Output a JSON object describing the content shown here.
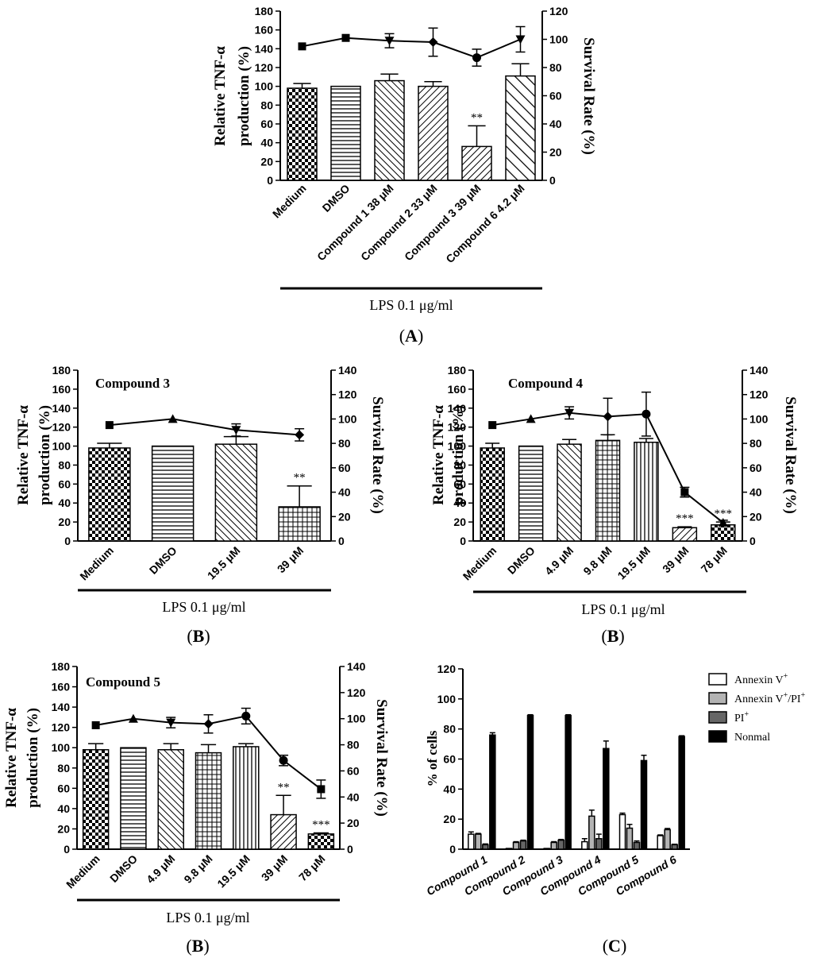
{
  "chart_data": [
    {
      "id": "A",
      "type": "bar",
      "panel_label": "(A)",
      "title": "",
      "ylabel": "Relative TNF-α\nproduction (%)",
      "y2label": "Survival Rate (%)",
      "ylim": [
        0,
        180
      ],
      "yticks": [
        0,
        20,
        40,
        60,
        80,
        100,
        120,
        140,
        160,
        180
      ],
      "y2lim": [
        0,
        120
      ],
      "y2ticks": [
        0,
        20,
        40,
        60,
        80,
        100,
        120
      ],
      "xgroup_label": "LPS 0.1 μg/ml",
      "categories": [
        "Medium",
        "DMSO",
        "Compound 1 38 μM",
        "Compound 2 33 μM",
        "Compound 3 39 μM",
        "Compound 6 4.2 μM"
      ],
      "values": [
        98,
        100,
        106,
        100,
        36,
        111
      ],
      "errors": [
        5,
        0,
        7,
        5,
        22,
        13
      ],
      "patterns": [
        "checker",
        "hlines",
        "diagrev",
        "diag",
        "diag",
        "diagrevwide"
      ],
      "annotations": [
        "",
        "",
        "",
        "",
        "**",
        ""
      ],
      "survival": [
        95,
        101,
        99,
        98,
        87,
        100
      ],
      "survival_err": [
        0,
        0,
        5,
        10,
        6,
        9
      ],
      "survival_markers": [
        "square",
        "square",
        "tridown",
        "diamond",
        "circle",
        "tridown"
      ]
    },
    {
      "id": "B1",
      "type": "bar",
      "panel_label": "(B)",
      "title": "Compound 3",
      "ylabel": "Relative TNF-α\nproduction (%)",
      "y2label": "Survival Rate (%)",
      "ylim": [
        0,
        180
      ],
      "yticks": [
        0,
        20,
        40,
        60,
        80,
        100,
        120,
        140,
        160,
        180
      ],
      "y2lim": [
        0,
        140
      ],
      "y2ticks": [
        0,
        20,
        40,
        60,
        80,
        100,
        120,
        140
      ],
      "xgroup_label": "LPS 0.1 μg/ml",
      "categories": [
        "Medium",
        "DMSO",
        "19.5 μM",
        "39 μM"
      ],
      "values": [
        98,
        100,
        102,
        36
      ],
      "errors": [
        5,
        0,
        8,
        22
      ],
      "patterns": [
        "checker",
        "hlines",
        "diagrev",
        "grid"
      ],
      "annotations": [
        "",
        "",
        "",
        "**"
      ],
      "survival": [
        95,
        100,
        91,
        87
      ],
      "survival_err": [
        0,
        0,
        5,
        5
      ],
      "survival_markers": [
        "square",
        "triangle",
        "tridown",
        "diamond"
      ]
    },
    {
      "id": "B2",
      "type": "bar",
      "panel_label": "(B)",
      "title": "Compound 4",
      "ylabel": "Relative TNF-α\nproduction (%)",
      "y2label": "Survival Rate (%)",
      "ylim": [
        0,
        180
      ],
      "yticks": [
        0,
        20,
        40,
        60,
        80,
        100,
        120,
        140,
        160,
        180
      ],
      "y2lim": [
        0,
        140
      ],
      "y2ticks": [
        0,
        20,
        40,
        60,
        80,
        100,
        120,
        140
      ],
      "xgroup_label": "LPS 0.1 μg/ml",
      "categories": [
        "Medium",
        "DMSO",
        "4.9 μM",
        "9.8 μM",
        "19.5 μM",
        "39 μM",
        "78 μM"
      ],
      "values": [
        98,
        100,
        102,
        106,
        104,
        14,
        17
      ],
      "errors": [
        5,
        0,
        5,
        6,
        4,
        1,
        3
      ],
      "patterns": [
        "checker",
        "hlines",
        "diagrev",
        "grid",
        "vlines",
        "diag",
        "checker"
      ],
      "annotations": [
        "",
        "",
        "",
        "",
        "",
        "***",
        "***"
      ],
      "survival": [
        95,
        100,
        105,
        102,
        104,
        40,
        15
      ],
      "survival_err": [
        0,
        0,
        5,
        15,
        18,
        4,
        2
      ],
      "survival_markers": [
        "square",
        "triangle",
        "tridown",
        "diamond",
        "circle",
        "square",
        "triangle"
      ]
    },
    {
      "id": "B3",
      "type": "bar",
      "panel_label": "(B)",
      "title": "Compound 5",
      "ylabel": "Relative TNF-α\nproduction (%)",
      "y2label": "Survival Rate (%)",
      "ylim": [
        0,
        180
      ],
      "yticks": [
        0,
        20,
        40,
        60,
        80,
        100,
        120,
        140,
        160,
        180
      ],
      "y2lim": [
        0,
        140
      ],
      "y2ticks": [
        0,
        20,
        40,
        60,
        80,
        100,
        120,
        140
      ],
      "xgroup_label": "LPS 0.1 μg/ml",
      "categories": [
        "Medium",
        "DMSO",
        "4.9 μM",
        "9.8 μM",
        "19.5 μM",
        "39 μM",
        "78 μM"
      ],
      "values": [
        98,
        100,
        98,
        95,
        101,
        34,
        15
      ],
      "errors": [
        6,
        0,
        6,
        8,
        3,
        19,
        1
      ],
      "patterns": [
        "checker",
        "hlines",
        "diagrev",
        "grid",
        "vlines",
        "diag",
        "checker"
      ],
      "annotations": [
        "",
        "",
        "",
        "",
        "",
        "**",
        "***"
      ],
      "survival": [
        95,
        100,
        97,
        96,
        102,
        68,
        46
      ],
      "survival_err": [
        0,
        0,
        4,
        7,
        6,
        4,
        7
      ],
      "survival_markers": [
        "square",
        "triangle",
        "tridown",
        "diamond",
        "circle",
        "circle",
        "square"
      ]
    },
    {
      "id": "C",
      "type": "bar",
      "panel_label": "(C)",
      "title": "",
      "ylabel": "% of cells",
      "ylim": [
        0,
        120
      ],
      "yticks": [
        0,
        20,
        40,
        60,
        80,
        100,
        120
      ],
      "categories": [
        "Compound 1",
        "Compound 2",
        "Compound 3",
        "Compound 4",
        "Compound 5",
        "Compound 6"
      ],
      "series": [
        {
          "name": "Annexin V+",
          "color": "#ffffff",
          "values": [
            10,
            0.5,
            0.5,
            5,
            23,
            9
          ],
          "errors": [
            1.5,
            0,
            0,
            2,
            1,
            0.5
          ]
        },
        {
          "name": "Annexin V+/PI+",
          "color": "#b3b3b3",
          "values": [
            10,
            4.5,
            4.5,
            22,
            14,
            13
          ],
          "errors": [
            0.5,
            0.5,
            0.5,
            4,
            2.5,
            0.8
          ]
        },
        {
          "name": "PI+",
          "color": "#666666",
          "values": [
            3,
            5.5,
            6,
            7,
            4.5,
            3
          ],
          "errors": [
            0.5,
            0.5,
            0.5,
            3,
            1,
            0.3
          ]
        },
        {
          "name": "Nonmal",
          "color": "#000000",
          "values": [
            76,
            89,
            89,
            67,
            59,
            75
          ],
          "errors": [
            1.5,
            0.5,
            0.5,
            5,
            3.5,
            0.5
          ]
        }
      ],
      "legend": [
        {
          "base": "Annexin V",
          "sup": "+",
          "mid": "",
          "sup2": ""
        },
        {
          "base": "Annexin V",
          "sup": "+",
          "mid": "/PI",
          "sup2": "+"
        },
        {
          "base": "PI",
          "sup": "+",
          "mid": "",
          "sup2": ""
        },
        {
          "base": "Nonmal",
          "sup": "",
          "mid": "",
          "sup2": ""
        }
      ]
    }
  ]
}
